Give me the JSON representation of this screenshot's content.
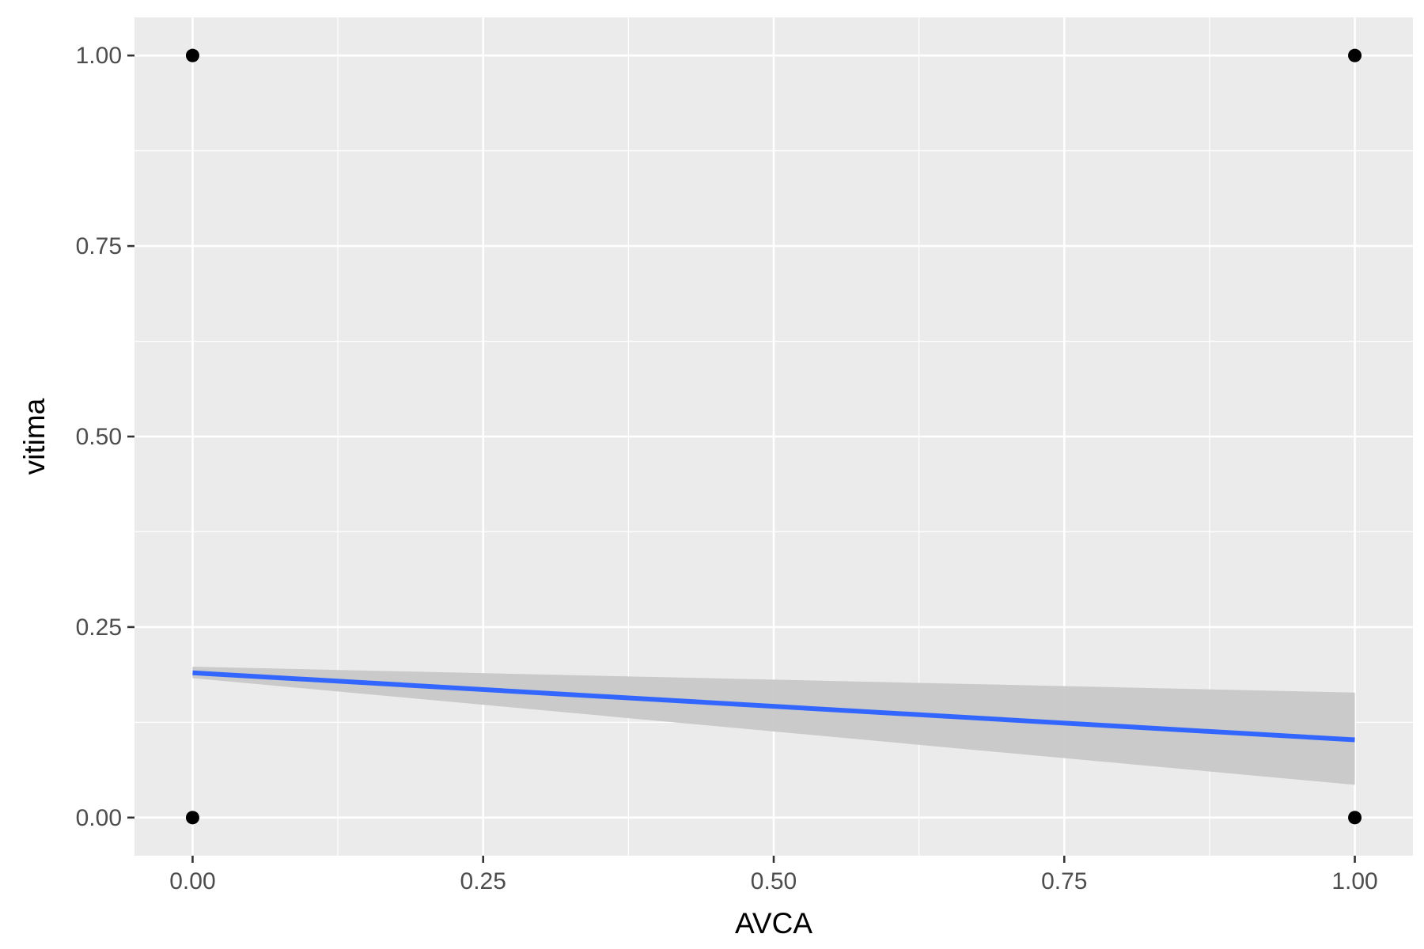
{
  "chart_data": {
    "type": "scatter",
    "title": "",
    "xlabel": "AVCA",
    "ylabel": "vitima",
    "xlim": [
      -0.05,
      1.05
    ],
    "ylim": [
      -0.05,
      1.05
    ],
    "x_ticks": [
      0,
      0.25,
      0.5,
      0.75,
      1
    ],
    "x_tick_labels": [
      "0.00",
      "0.25",
      "0.50",
      "0.75",
      "1.00"
    ],
    "y_ticks": [
      0,
      0.25,
      0.5,
      0.75,
      1
    ],
    "y_tick_labels": [
      "0.00",
      "0.25",
      "0.50",
      "0.75",
      "1.00"
    ],
    "grid": true,
    "legend": "none",
    "points": [
      {
        "x": 0,
        "y": 1
      },
      {
        "x": 1,
        "y": 1
      },
      {
        "x": 0,
        "y": 0
      },
      {
        "x": 1,
        "y": 0
      }
    ],
    "fit": {
      "method": "linear",
      "x": [
        0,
        1
      ],
      "y": [
        0.19,
        0.102
      ],
      "ci_lower": [
        0.183,
        0.043
      ],
      "ci_upper": [
        0.198,
        0.164
      ]
    },
    "colors": {
      "panel": "#ebebeb",
      "grid": "#ffffff",
      "points": "#000000",
      "fit_line": "#3366ff",
      "ci_band": "#c8c8c8"
    }
  }
}
